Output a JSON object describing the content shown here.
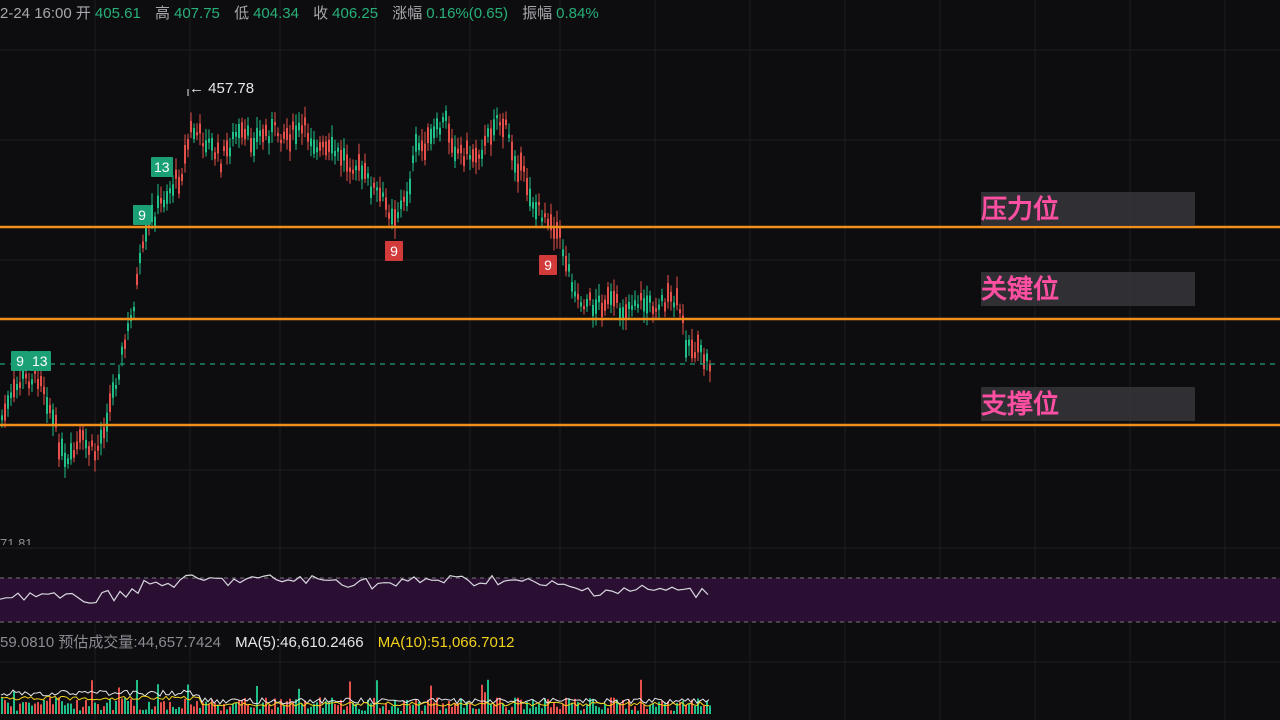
{
  "info": {
    "date": "2-24 16:00",
    "open_label": "开",
    "open": "405.61",
    "high_label": "高",
    "high": "407.75",
    "low_label": "低",
    "low": "404.34",
    "close_label": "收",
    "close": "406.25",
    "change_label": "涨幅",
    "change": "0.16%(0.65)",
    "amp_label": "振幅",
    "amp": "0.84%"
  },
  "chart": {
    "peak_label": "← 457.78",
    "cut_label": "71.81",
    "levels": [
      {
        "label": "压力位"
      },
      {
        "label": "关键位"
      },
      {
        "label": "支撑位"
      }
    ],
    "badges": [
      {
        "text": "13",
        "color": "green"
      },
      {
        "text": "9",
        "color": "green"
      },
      {
        "text": "9",
        "color": "green"
      },
      {
        "text": "13",
        "color": "green"
      },
      {
        "text": "9",
        "color": "red"
      },
      {
        "text": "9",
        "color": "red"
      }
    ],
    "colors": {
      "up": "#1fbf87",
      "down": "#e6504a",
      "level": "#f0901a",
      "osc_band": "#2a0f33"
    }
  },
  "volume": {
    "prefix": "59.0810",
    "est_label": "预估成交量:",
    "est_value": "44,657.7424",
    "ma5_text": "MA(5):46,610.2466",
    "ma10_text": "MA(10):51,066.7012"
  }
}
